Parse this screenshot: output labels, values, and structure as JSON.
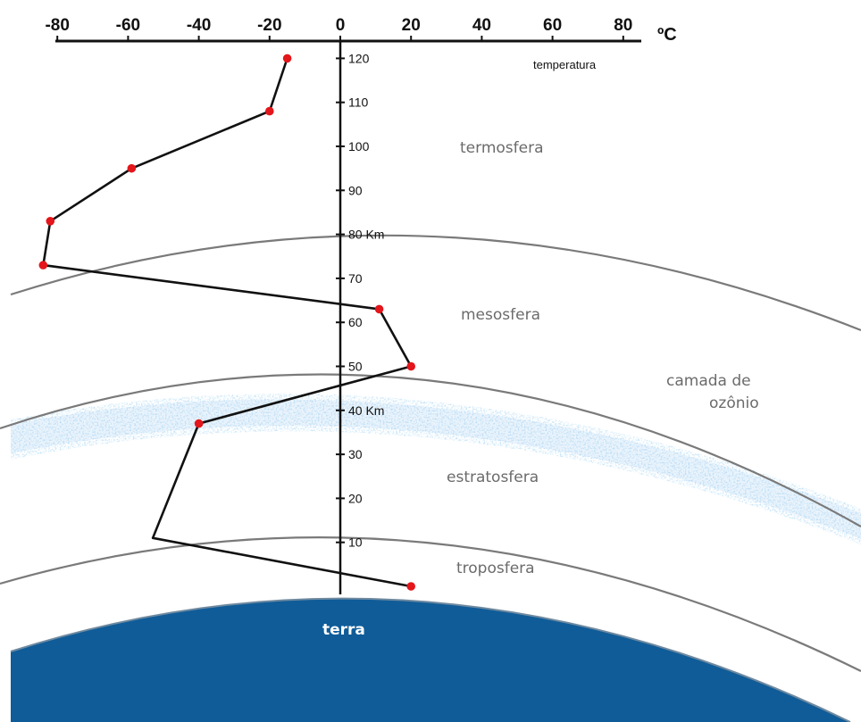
{
  "units": {
    "temperature": "ºC",
    "temperature_axis_title": "temperatura",
    "altitude_km": "Km"
  },
  "temperature_ticks": [
    "-80",
    "-60",
    "-40",
    "-20",
    "0",
    "20",
    "40",
    "60",
    "80"
  ],
  "altitude_ticks": [
    "10",
    "20",
    "30",
    "40 Km",
    "50",
    "60",
    "70",
    "80 Km",
    "90",
    "100",
    "110",
    "120"
  ],
  "layers": {
    "termosfera": "termosfera",
    "mesosfera": "mesosfera",
    "ozone_line1": "camada de",
    "ozone_line2": "ozônio",
    "estratosfera": "estratosfera",
    "troposfera": "troposfera",
    "terra": "terra"
  },
  "colors": {
    "earth": "#0f5c99",
    "ozone": "#8fc4ec",
    "boundary": "#7a7a7a",
    "curve": "#111111",
    "points": "#e3161b",
    "layer_text": "#6b6b6b"
  },
  "chart_data": {
    "type": "line",
    "xlabel": "temperatura",
    "ylabel": "",
    "xlim": [
      -80,
      80
    ],
    "ylim": [
      0,
      120
    ],
    "series": [
      {
        "x": [
          20,
          -53,
          -40,
          20,
          11,
          -84,
          -82,
          -59,
          -20,
          -15
        ],
        "y": [
          0,
          11,
          37,
          50,
          63,
          73,
          83,
          95,
          108,
          120
        ]
      }
    ],
    "marked_points": [
      [
        20,
        0
      ],
      [
        -40,
        37
      ],
      [
        20,
        50
      ],
      [
        11,
        63
      ],
      [
        -84,
        73
      ],
      [
        -82,
        83
      ],
      [
        -59,
        95
      ],
      [
        -20,
        108
      ],
      [
        -15,
        120
      ]
    ]
  }
}
